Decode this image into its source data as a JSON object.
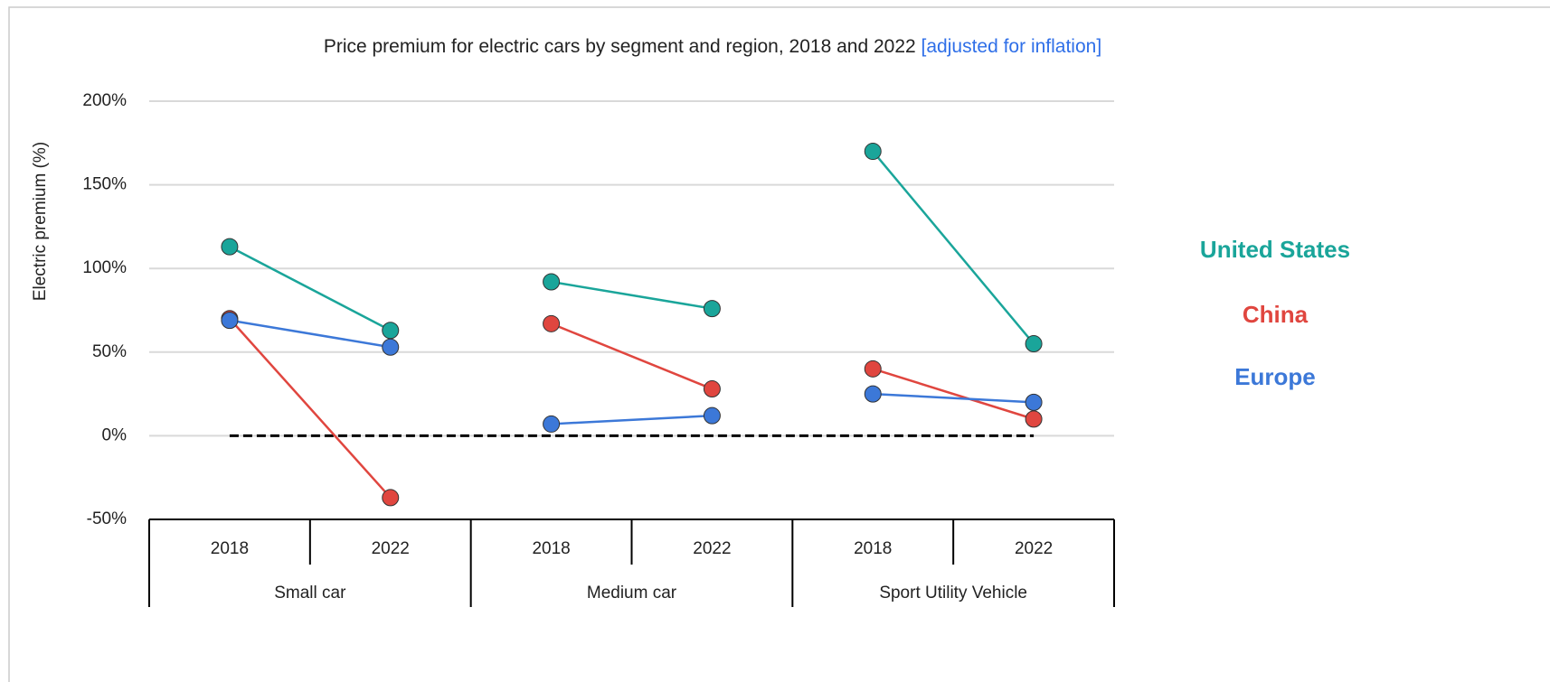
{
  "chart_data": {
    "type": "line",
    "title": "Price premium for electric cars by segment and region, 2018 and 2022",
    "title_note": "[adjusted for inflation]",
    "y_label": "Electric premium (%)",
    "categories": [
      "2018",
      "2022",
      "2018",
      "2022",
      "2018",
      "2022"
    ],
    "groups": [
      "Small car",
      "Medium car",
      "Sport Utility Vehicle"
    ],
    "series": [
      {
        "name": "United States",
        "color": "#1aa59a",
        "values": [
          113,
          63,
          92,
          76,
          170,
          55
        ]
      },
      {
        "name": "China",
        "color": "#e0463f",
        "values": [
          70,
          -37,
          67,
          28,
          40,
          10
        ]
      },
      {
        "name": "Europe",
        "color": "#3c78d8",
        "values": [
          69,
          53,
          7,
          12,
          25,
          20
        ]
      }
    ],
    "reference_line": 0,
    "ylim": [
      -50,
      200
    ],
    "yticks": [
      {
        "value": -50,
        "label": "-50%"
      },
      {
        "value": 0,
        "label": "0%"
      },
      {
        "value": 50,
        "label": "50%"
      },
      {
        "value": 100,
        "label": "100%"
      },
      {
        "value": 150,
        "label": "150%"
      },
      {
        "value": 200,
        "label": "200%"
      }
    ],
    "grid": true
  }
}
